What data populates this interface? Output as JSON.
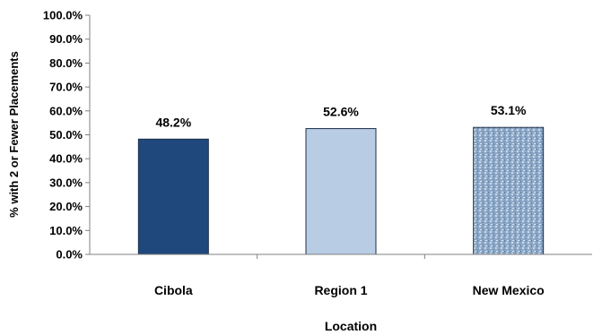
{
  "chart_data": {
    "type": "bar",
    "categories": [
      "Cibola",
      "Region 1",
      "New Mexico"
    ],
    "values": [
      48.2,
      52.6,
      53.1
    ],
    "value_labels": [
      "48.2%",
      "52.6%",
      "53.1%"
    ],
    "title": "",
    "xlabel": "Location",
    "ylabel": "% with 2 or Fewer Placements",
    "ylim": [
      0,
      100
    ],
    "yticks": [
      "0.0%",
      "10.0%",
      "20.0%",
      "30.0%",
      "40.0%",
      "50.0%",
      "60.0%",
      "70.0%",
      "80.0%",
      "90.0%",
      "100.0%"
    ],
    "grid": false,
    "legend": "none",
    "colors": {
      "Cibola": "#1f497d",
      "Region 1": "#b8cce4",
      "New Mexico": "#8ea9c8"
    }
  }
}
